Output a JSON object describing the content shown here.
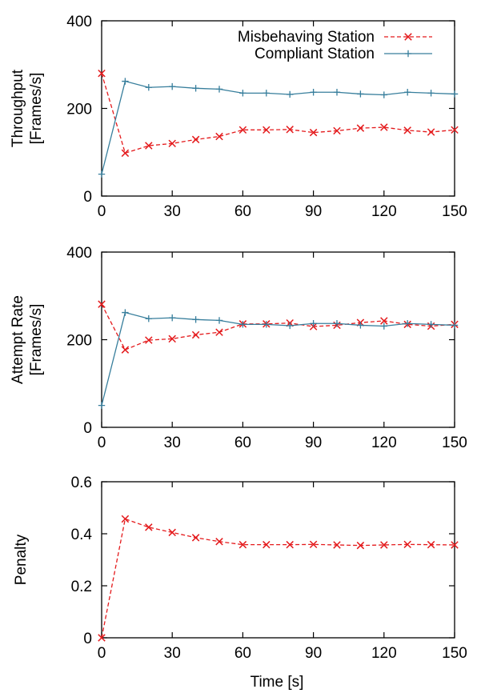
{
  "colors": {
    "misbehaving": "#e41a1c",
    "compliant": "#377e9c",
    "axis": "#000000"
  },
  "xlabel": "Time [s]",
  "chart_data": [
    {
      "type": "line",
      "ylabel": [
        "Throughput",
        "[Frames/s]"
      ],
      "xlim": [
        0,
        150
      ],
      "ylim": [
        0,
        400
      ],
      "xticks": [
        "0",
        "30",
        "60",
        "90",
        "120",
        "150"
      ],
      "yticks": [
        "0",
        "200",
        "400"
      ],
      "grid": false,
      "legend": "top-right",
      "series": [
        {
          "name": "Misbehaving Station",
          "color": "#e41a1c",
          "style": "dashed",
          "marker": "x",
          "x": [
            0,
            10,
            20,
            30,
            40,
            50,
            60,
            70,
            80,
            90,
            100,
            110,
            120,
            130,
            140,
            150
          ],
          "y": [
            280,
            98,
            115,
            120,
            129,
            136,
            151,
            151,
            152,
            145,
            149,
            155,
            157,
            150,
            146,
            151
          ]
        },
        {
          "name": "Compliant Station",
          "color": "#377e9c",
          "style": "solid",
          "marker": "+",
          "x": [
            0,
            10,
            20,
            30,
            40,
            50,
            60,
            70,
            80,
            90,
            100,
            110,
            120,
            130,
            140,
            150
          ],
          "y": [
            50,
            262,
            248,
            250,
            246,
            244,
            235,
            235,
            232,
            237,
            237,
            233,
            231,
            237,
            235,
            233
          ]
        }
      ]
    },
    {
      "type": "line",
      "ylabel": [
        "Attempt Rate",
        "[Frames/s]"
      ],
      "xlim": [
        0,
        150
      ],
      "ylim": [
        0,
        400
      ],
      "xticks": [
        "0",
        "30",
        "60",
        "90",
        "120",
        "150"
      ],
      "yticks": [
        "0",
        "200",
        "400"
      ],
      "grid": false,
      "series": [
        {
          "name": "Misbehaving Station",
          "color": "#e41a1c",
          "style": "dashed",
          "marker": "x",
          "x": [
            0,
            10,
            20,
            30,
            40,
            50,
            60,
            70,
            80,
            90,
            100,
            110,
            120,
            130,
            140,
            150
          ],
          "y": [
            281,
            177,
            199,
            202,
            211,
            217,
            236,
            236,
            238,
            230,
            233,
            239,
            243,
            235,
            231,
            235
          ]
        },
        {
          "name": "Compliant Station",
          "color": "#377e9c",
          "style": "solid",
          "marker": "+",
          "x": [
            0,
            10,
            20,
            30,
            40,
            50,
            60,
            70,
            80,
            90,
            100,
            110,
            120,
            130,
            140,
            150
          ],
          "y": [
            50,
            262,
            248,
            250,
            246,
            244,
            235,
            235,
            232,
            237,
            237,
            233,
            231,
            237,
            235,
            233
          ]
        }
      ]
    },
    {
      "type": "line",
      "ylabel": [
        "Penalty"
      ],
      "xlim": [
        0,
        150
      ],
      "ylim": [
        0,
        0.6
      ],
      "xticks": [
        "0",
        "30",
        "60",
        "90",
        "120",
        "150"
      ],
      "yticks": [
        "0",
        "0.2",
        "0.4",
        "0.6"
      ],
      "grid": false,
      "series": [
        {
          "color": "#e41a1c",
          "style": "dashed",
          "marker": "x",
          "x": [
            0,
            10,
            20,
            30,
            40,
            50,
            60,
            70,
            80,
            90,
            100,
            110,
            120,
            130,
            140,
            150
          ],
          "y": [
            0,
            0.457,
            0.425,
            0.405,
            0.385,
            0.37,
            0.358,
            0.358,
            0.358,
            0.359,
            0.357,
            0.355,
            0.357,
            0.359,
            0.358,
            0.357
          ]
        }
      ]
    }
  ]
}
